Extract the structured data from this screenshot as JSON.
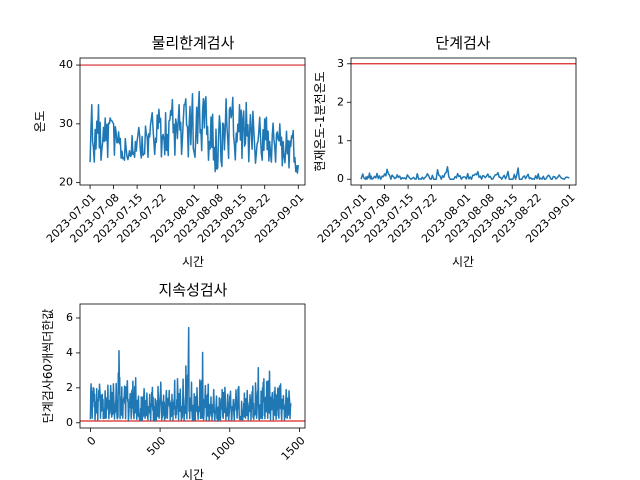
{
  "colors": {
    "series": "#1f77b4",
    "threshold": "#d62728"
  },
  "chart_data": [
    {
      "id": "p1",
      "type": "line",
      "title": "물리한계검사",
      "xlabel": "시간",
      "ylabel": "온도",
      "x_type": "date",
      "x_range": [
        "2023-06-28",
        "2023-09-03"
      ],
      "ylim": [
        19.6,
        41.2
      ],
      "yticks": [
        20,
        30,
        40
      ],
      "xticks": [
        "2023-07-01",
        "2023-07-08",
        "2023-07-15",
        "2023-07-22",
        "2023-08-01",
        "2023-08-08",
        "2023-08-15",
        "2023-08-22",
        "2023-09-01"
      ],
      "threshold": 40,
      "series": [
        {
          "x": [
            "2023-07-01",
            "2023-07-03",
            "2023-07-05",
            "2023-07-07",
            "2023-07-09",
            "2023-07-11",
            "2023-07-13",
            "2023-07-15",
            "2023-07-17",
            "2023-07-19",
            "2023-07-21",
            "2023-07-23",
            "2023-07-25",
            "2023-07-27",
            "2023-07-29",
            "2023-07-31",
            "2023-08-02",
            "2023-08-04",
            "2023-08-06",
            "2023-08-08",
            "2023-08-10",
            "2023-08-12",
            "2023-08-14",
            "2023-08-16",
            "2023-08-18",
            "2023-08-20",
            "2023-08-22",
            "2023-08-24",
            "2023-08-26",
            "2023-08-28",
            "2023-08-30",
            "2023-09-01"
          ],
          "y": [
            25,
            29,
            27,
            30,
            27.5,
            24.5,
            25.5,
            27,
            26.5,
            28,
            30,
            27,
            29,
            27.5,
            30,
            28.5,
            30.5,
            32,
            28,
            25.5,
            29,
            31,
            27.5,
            30,
            29,
            26.5,
            28,
            26,
            27.5,
            24.5,
            27,
            23
          ],
          "min": [
            23.5,
            23.5,
            24,
            24.5,
            24.8,
            23.8,
            24,
            24.5,
            24,
            24.5,
            25,
            24,
            25,
            24.5,
            25,
            24,
            24.5,
            26,
            22.5,
            21.5,
            23.5,
            24.5,
            23.5,
            24.5,
            23,
            23.5,
            24,
            23.5,
            23.5,
            22.5,
            22.5,
            21.5
          ],
          "max": [
            33,
            34,
            31,
            31,
            29,
            27.5,
            27.5,
            29.5,
            29,
            31.5,
            33,
            31,
            34.5,
            33,
            34,
            35,
            35.5,
            35.5,
            32,
            30.5,
            34,
            35,
            33,
            34,
            32.5,
            31,
            31.5,
            30,
            30.5,
            28.5,
            29.5,
            27
          ]
        }
      ]
    },
    {
      "id": "p2",
      "type": "line",
      "title": "단계검사",
      "xlabel": "시간",
      "ylabel": "현재온도-1분전온도",
      "x_type": "date",
      "x_range": [
        "2023-06-28",
        "2023-09-03"
      ],
      "ylim": [
        -0.15,
        3.15
      ],
      "yticks": [
        0,
        1,
        2,
        3
      ],
      "xticks": [
        "2023-07-01",
        "2023-07-08",
        "2023-07-15",
        "2023-07-22",
        "2023-08-01",
        "2023-08-08",
        "2023-08-15",
        "2023-08-22",
        "2023-09-01"
      ],
      "threshold": 3,
      "series": [
        {
          "x": [
            "2023-07-01",
            "2023-07-03",
            "2023-07-05",
            "2023-07-08",
            "2023-07-11",
            "2023-07-14",
            "2023-07-17",
            "2023-07-20",
            "2023-07-23",
            "2023-07-26",
            "2023-07-29",
            "2023-08-01",
            "2023-08-04",
            "2023-08-07",
            "2023-08-10",
            "2023-08-13",
            "2023-08-16",
            "2023-08-19",
            "2023-08-22",
            "2023-08-25",
            "2023-08-28",
            "2023-09-01"
          ],
          "y": [
            0.03,
            0.05,
            0.04,
            0.05,
            0.04,
            0.04,
            0.05,
            0.04,
            0.06,
            0.05,
            0.04,
            0.05,
            0.06,
            0.04,
            0.05,
            0.04,
            0.05,
            0.05,
            0.04,
            0.04,
            0.05,
            0.03
          ],
          "min": [
            0,
            0,
            0,
            0,
            0,
            0,
            0,
            0,
            0,
            0,
            0,
            0,
            0,
            0,
            0,
            0,
            0,
            0,
            0,
            0,
            0,
            0
          ],
          "max": [
            0.12,
            0.18,
            0.1,
            0.3,
            0.12,
            0.1,
            0.15,
            0.12,
            0.2,
            0.38,
            0.15,
            0.12,
            0.22,
            0.12,
            0.18,
            0.15,
            0.35,
            0.12,
            0.15,
            0.1,
            0.12,
            0.08
          ]
        }
      ]
    },
    {
      "id": "p3",
      "type": "line",
      "title": "지속성검사",
      "xlabel": "시간",
      "ylabel": "단계검사60개씩더한값",
      "x_type": "number",
      "xlim": [
        -75,
        1540
      ],
      "ylim": [
        -0.3,
        6.8
      ],
      "xticks": [
        0,
        500,
        1000,
        1500
      ],
      "yticks": [
        0,
        2,
        4,
        6
      ],
      "threshold": 0.1,
      "series": [
        {
          "x": [
            0,
            20,
            40,
            60,
            80,
            100,
            120,
            140,
            160,
            180,
            200,
            220,
            240,
            260,
            280,
            300,
            320,
            340,
            360,
            380,
            400,
            420,
            440,
            460,
            480,
            500,
            520,
            540,
            560,
            580,
            600,
            620,
            640,
            660,
            680,
            700,
            720,
            740,
            760,
            780,
            800,
            820,
            840,
            860,
            880,
            900,
            920,
            940,
            960,
            980,
            1000,
            1020,
            1040,
            1060,
            1080,
            1100,
            1120,
            1140,
            1160,
            1180,
            1200,
            1220,
            1240,
            1260,
            1280,
            1300,
            1320,
            1340,
            1360,
            1380,
            1400,
            1420,
            1440
          ],
          "y": [
            1.0,
            1.8,
            0.6,
            1.2,
            0.9,
            0.7,
            1.5,
            1.0,
            1.3,
            0.5,
            2.0,
            1.1,
            0.9,
            1.4,
            0.6,
            1.2,
            1.5,
            0.8,
            0.4,
            1.1,
            0.9,
            0.6,
            1.2,
            0.5,
            0.9,
            1.3,
            0.7,
            0.9,
            1.1,
            0.6,
            1.0,
            1.4,
            0.8,
            1.2,
            0.9,
            1.7,
            1.2,
            0.7,
            1.0,
            0.8,
            1.1,
            0.9,
            1.3,
            0.6,
            1.0,
            0.8,
            0.5,
            0.9,
            1.1,
            0.7,
            1.0,
            0.6,
            0.9,
            1.2,
            0.5,
            0.8,
            1.0,
            0.7,
            1.1,
            0.9,
            1.2,
            0.7,
            1.4,
            1.0,
            1.6,
            0.8,
            1.1,
            0.9,
            1.3,
            0.7,
            1.0,
            0.8,
            1.1
          ],
          "min": [
            0.2,
            0.3,
            0.1,
            0.2,
            0.3,
            0.2,
            0.3,
            0.2,
            0.4,
            0.1,
            0.3,
            0.2,
            0.3,
            0.2,
            0.1,
            0.3,
            0.2,
            0.2,
            0.1,
            0.2,
            0.3,
            0.1,
            0.2,
            0.1,
            0.2,
            0.3,
            0.1,
            0.2,
            0.3,
            0.1,
            0.2,
            0.3,
            0.1,
            0.2,
            0.1,
            0.3,
            0.2,
            0.1,
            0.2,
            0.2,
            0.3,
            0.1,
            0.2,
            0.1,
            0.2,
            0.1,
            0.1,
            0.2,
            0.3,
            0.1,
            0.2,
            0.1,
            0.2,
            0.3,
            0.1,
            0.2,
            0.3,
            0.1,
            0.2,
            0.2,
            0.3,
            0.1,
            0.3,
            0.2,
            0.3,
            0.1,
            0.2,
            0.2,
            0.3,
            0.1,
            0.2,
            0.3,
            0.2
          ],
          "max": [
            2.3,
            2.0,
            1.8,
            2.4,
            1.6,
            1.7,
            2.2,
            2.0,
            2.5,
            1.4,
            4.8,
            2.1,
            1.9,
            2.7,
            1.5,
            2.2,
            2.9,
            1.6,
            1.3,
            2.0,
            1.8,
            1.4,
            2.3,
            1.2,
            1.9,
            2.6,
            1.5,
            1.8,
            2.0,
            1.4,
            2.3,
            2.8,
            1.7,
            2.6,
            2.2,
            6.4,
            2.6,
            1.5,
            2.1,
            1.7,
            4.7,
            2.0,
            2.5,
            1.3,
            2.0,
            1.6,
            1.3,
            1.8,
            2.2,
            1.5,
            2.0,
            1.2,
            1.7,
            2.4,
            1.1,
            1.6,
            2.0,
            1.4,
            2.2,
            1.8,
            3.7,
            1.5,
            2.7,
            2.0,
            3.4,
            1.6,
            2.1,
            1.8,
            2.5,
            1.4,
            2.0,
            1.6,
            2.5
          ]
        }
      ]
    }
  ]
}
